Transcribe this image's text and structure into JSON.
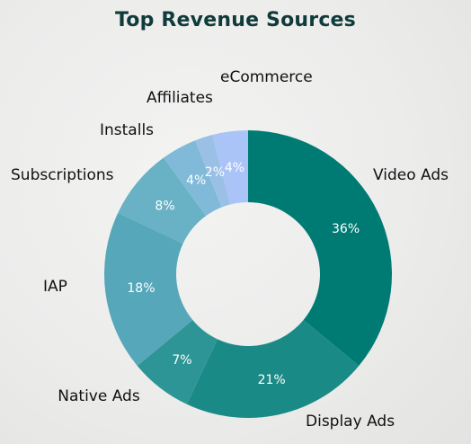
{
  "chart_data": {
    "type": "pie",
    "title": "Top Revenue Sources",
    "donut": true,
    "categories": [
      "Video Ads",
      "Display Ads",
      "Native Ads",
      "IAP",
      "Subscriptions",
      "Installs",
      "Affiliates",
      "eCommerce"
    ],
    "values": [
      36,
      21,
      7,
      18,
      8,
      4,
      2,
      4
    ],
    "value_labels": [
      "36%",
      "21%",
      "7%",
      "18%",
      "8%",
      "4%",
      "2%",
      "4%"
    ],
    "colors": [
      "#007b73",
      "#1a8a86",
      "#2e9596",
      "#56a7b9",
      "#69b1c4",
      "#80bad8",
      "#9ac0e6",
      "#aac4f7"
    ],
    "legend": "none"
  }
}
